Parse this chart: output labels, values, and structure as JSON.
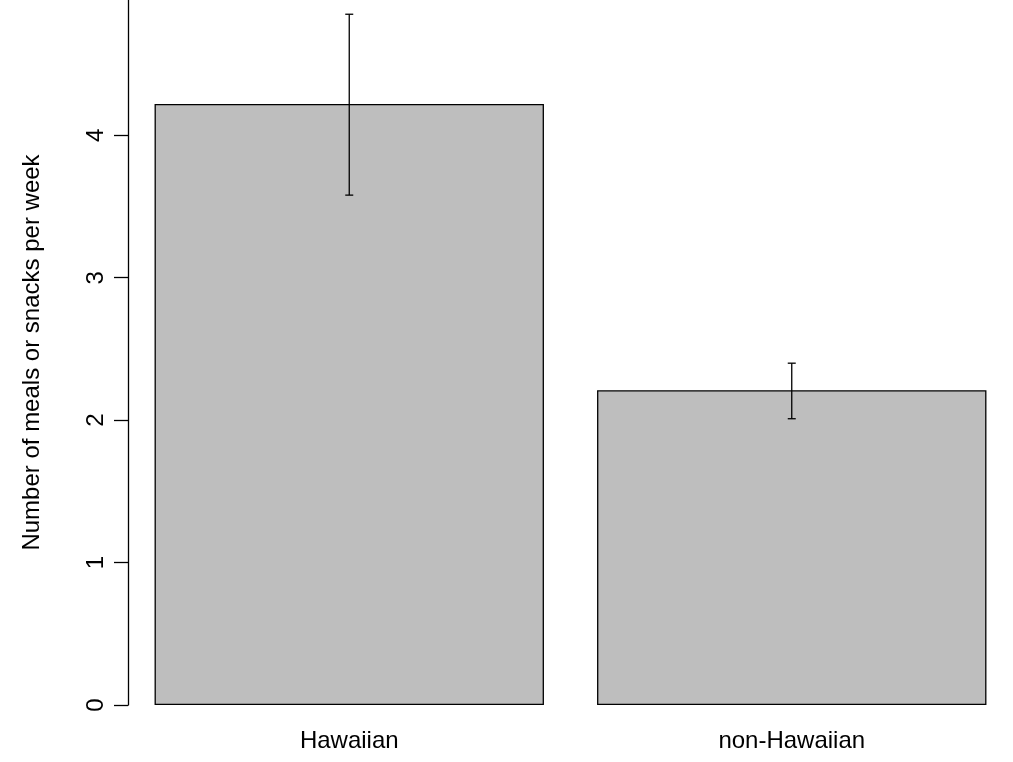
{
  "chart_data": {
    "type": "bar",
    "ylabel": "Number of meals or snacks per week",
    "categories": [
      "Hawaiian",
      "non-Hawaiian"
    ],
    "values": [
      4.22,
      2.21
    ],
    "errors": [
      [
        3.58,
        4.85
      ],
      [
        2.01,
        2.4
      ]
    ],
    "color": "#bebebe",
    "ylim": [
      0,
      4.95
    ],
    "yticks": [
      0,
      1,
      2,
      3,
      4
    ],
    "grid": false
  }
}
